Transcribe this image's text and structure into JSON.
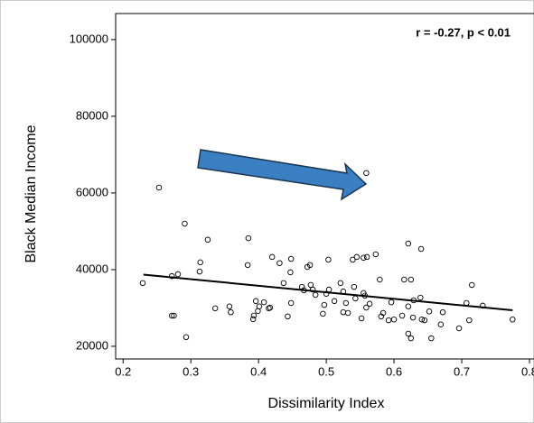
{
  "chart_data": {
    "type": "scatter",
    "annotation": "r = -0.27, p < 0.01",
    "xlabel": "Dissimilarity Index",
    "ylabel": "Black Median Income",
    "xlim": [
      0.189,
      0.8
    ],
    "ylim": [
      16700,
      106800
    ],
    "xticks": [
      0.2,
      0.3,
      0.4,
      0.5,
      0.6,
      0.7,
      0.8
    ],
    "yticks": [
      20000,
      40000,
      60000,
      80000,
      100000
    ],
    "color": "#000000",
    "x": [
      0.229,
      0.253,
      0.272,
      0.275,
      0.272,
      0.281,
      0.291,
      0.293,
      0.313,
      0.314,
      0.325,
      0.336,
      0.357,
      0.359,
      0.385,
      0.384,
      0.392,
      0.393,
      0.396,
      0.401,
      0.399,
      0.408,
      0.415,
      0.417,
      0.42,
      0.431,
      0.437,
      0.443,
      0.447,
      0.448,
      0.448,
      0.464,
      0.467,
      0.472,
      0.476,
      0.477,
      0.48,
      0.484,
      0.495,
      0.497,
      0.5,
      0.503,
      0.504,
      0.512,
      0.521,
      0.525,
      0.525,
      0.529,
      0.532,
      0.539,
      0.541,
      0.543,
      0.545,
      0.555,
      0.559,
      0.56,
      0.552,
      0.555,
      0.559,
      0.557,
      0.564,
      0.573,
      0.579,
      0.581,
      0.584,
      0.592,
      0.6,
      0.596,
      0.612,
      0.615,
      0.621,
      0.625,
      0.621,
      0.621,
      0.625,
      0.628,
      0.629,
      0.639,
      0.641,
      0.645,
      0.64,
      0.652,
      0.655,
      0.669,
      0.672,
      0.696,
      0.707,
      0.711,
      0.715,
      0.731,
      0.775
    ],
    "y": [
      36500,
      61400,
      28000,
      28000,
      38300,
      38800,
      52000,
      22400,
      39500,
      41900,
      47800,
      29900,
      30400,
      28900,
      48200,
      41200,
      27100,
      28000,
      31800,
      30400,
      29200,
      31500,
      29900,
      30100,
      43300,
      41700,
      36500,
      27800,
      39300,
      42800,
      31300,
      35500,
      34600,
      40700,
      41200,
      36000,
      34800,
      33400,
      28500,
      30800,
      33700,
      42600,
      34800,
      31800,
      36500,
      28900,
      34300,
      31300,
      28700,
      42600,
      35500,
      32500,
      43300,
      43100,
      65200,
      43300,
      27300,
      33900,
      30100,
      33200,
      31100,
      44000,
      37400,
      27800,
      28700,
      26800,
      27000,
      31500,
      28000,
      37400,
      30400,
      37400,
      46800,
      23300,
      22100,
      27500,
      32000,
      32700,
      27000,
      26800,
      45400,
      29100,
      22100,
      25700,
      28900,
      24700,
      31300,
      26800,
      36000,
      30600,
      27000
    ],
    "fit": {
      "x": [
        0.23,
        0.775
      ],
      "y": [
        38700,
        29400
      ]
    }
  }
}
